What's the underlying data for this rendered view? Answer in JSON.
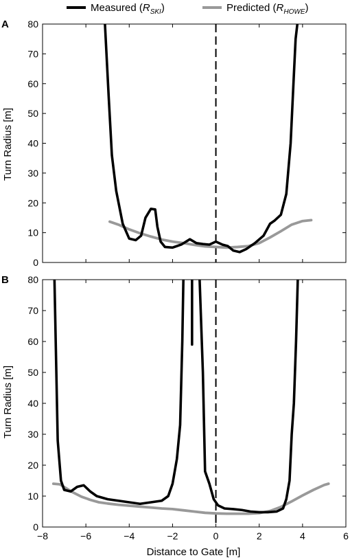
{
  "legend": {
    "entries": [
      {
        "label": "Measured (",
        "sym": "R",
        "sub": "SKI",
        "close": ")",
        "color": "#000000"
      },
      {
        "label": "Predicted (",
        "sym": "R",
        "sub": "HOWE",
        "close": ")",
        "color": "#999999"
      }
    ]
  },
  "chart_data": [
    {
      "type": "line",
      "panel_label": "A",
      "xlabel": "",
      "ylabel": "Turn Radius [m]",
      "xlim": [
        -8,
        6
      ],
      "ylim": [
        0,
        80
      ],
      "xticks": [
        -8,
        -6,
        -4,
        -2,
        0,
        2,
        4,
        6
      ],
      "yticks": [
        0,
        10,
        20,
        30,
        40,
        50,
        60,
        70,
        80
      ],
      "xtick_labels_shown": false,
      "gate_line_x": 0,
      "series": [
        {
          "name": "Measured (RSKI)",
          "color": "#000000",
          "x": [
            -5.12,
            -4.95,
            -4.8,
            -4.6,
            -4.3,
            -4.0,
            -3.7,
            -3.45,
            -3.25,
            -3.0,
            -2.8,
            -2.7,
            -2.55,
            -2.35,
            -2.0,
            -1.6,
            -1.2,
            -0.9,
            -0.6,
            -0.3,
            0.0,
            0.3,
            0.55,
            0.8,
            1.1,
            1.4,
            1.8,
            2.2,
            2.5,
            2.7,
            3.0,
            3.25,
            3.45,
            3.58,
            3.68,
            3.76
          ],
          "y": [
            80,
            56,
            36,
            24,
            13,
            8,
            7.5,
            9,
            15,
            18,
            17.8,
            12,
            7,
            5.2,
            5,
            6,
            7.8,
            6.5,
            6.2,
            6,
            7,
            6,
            5.5,
            4,
            3.5,
            4.5,
            6.5,
            9,
            13,
            14,
            16,
            23,
            40,
            60,
            75,
            80
          ]
        },
        {
          "name": "Predicted (RHOWE)",
          "color": "#999999",
          "x": [
            -4.9,
            -4.5,
            -4.0,
            -3.5,
            -3.0,
            -2.5,
            -2.0,
            -1.5,
            -1.0,
            -0.5,
            0.0,
            0.5,
            1.0,
            1.5,
            2.0,
            2.5,
            3.0,
            3.5,
            4.0,
            4.4
          ],
          "y": [
            13.7,
            12.7,
            11.1,
            9.8,
            8.7,
            7.7,
            7.0,
            6.5,
            5.9,
            5.4,
            5.2,
            5.0,
            5.2,
            5.5,
            6.5,
            8.4,
            10.5,
            12.7,
            13.9,
            14.2
          ]
        }
      ]
    },
    {
      "type": "line",
      "panel_label": "B",
      "xlabel": "Distance to Gate [m]",
      "ylabel": "Turn Radius [m]",
      "xlim": [
        -8,
        6
      ],
      "ylim": [
        0,
        80
      ],
      "xticks": [
        -8,
        -6,
        -4,
        -2,
        0,
        2,
        4,
        6
      ],
      "yticks": [
        0,
        10,
        20,
        30,
        40,
        50,
        60,
        70,
        80
      ],
      "xtick_labels_shown": true,
      "gate_line_x": 0,
      "series": [
        {
          "name": "Measured (RSKI)",
          "color": "#000000",
          "x": [
            -7.45,
            -7.3,
            -7.15,
            -7.0,
            -6.7,
            -6.4,
            -6.1,
            -5.8,
            -5.5,
            -5.0,
            -4.5,
            -4.0,
            -3.5,
            -3.0,
            -2.5,
            -2.2,
            -2.0,
            -1.8,
            -1.65,
            -1.55,
            -1.5,
            null,
            -1.1,
            -1.1,
            -1.1,
            null,
            -0.75,
            -0.6,
            -0.5,
            -0.3,
            -0.1,
            0.1,
            0.4,
            0.8,
            1.2,
            1.6,
            2.0,
            2.4,
            2.8,
            3.1,
            3.25,
            3.4,
            3.5,
            3.6,
            3.7,
            3.78
          ],
          "y": [
            80,
            28,
            15,
            12,
            11.5,
            13,
            13.5,
            11.5,
            10,
            9,
            8.5,
            8,
            7.5,
            8,
            8.5,
            10,
            14,
            22,
            33,
            60,
            80,
            null,
            80,
            59,
            80,
            null,
            80,
            50,
            18,
            14,
            9,
            7,
            6,
            5.8,
            5.5,
            5,
            4.8,
            4.8,
            5,
            6,
            9,
            15,
            30,
            40,
            60,
            80
          ]
        },
        {
          "name": "Predicted (RHOWE)",
          "color": "#999999",
          "x": [
            -7.5,
            -7.2,
            -6.9,
            -6.6,
            -6.2,
            -5.8,
            -5.4,
            -5.0,
            -4.5,
            -4.0,
            -3.5,
            -3.0,
            -2.5,
            -2.0,
            -1.5,
            -1.0,
            -0.5,
            0.0,
            0.5,
            1.0,
            1.5,
            2.0,
            2.5,
            3.0,
            3.5,
            4.0,
            4.5,
            5.0,
            5.2
          ],
          "y": [
            14,
            13.8,
            12.5,
            11.2,
            9.8,
            8.8,
            8.0,
            7.6,
            7.2,
            6.9,
            6.6,
            6.3,
            6.0,
            5.8,
            5.4,
            5.0,
            4.6,
            4.4,
            4.3,
            4.3,
            4.3,
            4.5,
            5.2,
            6.5,
            8.3,
            10.2,
            12.0,
            13.6,
            14.0
          ]
        }
      ]
    }
  ]
}
